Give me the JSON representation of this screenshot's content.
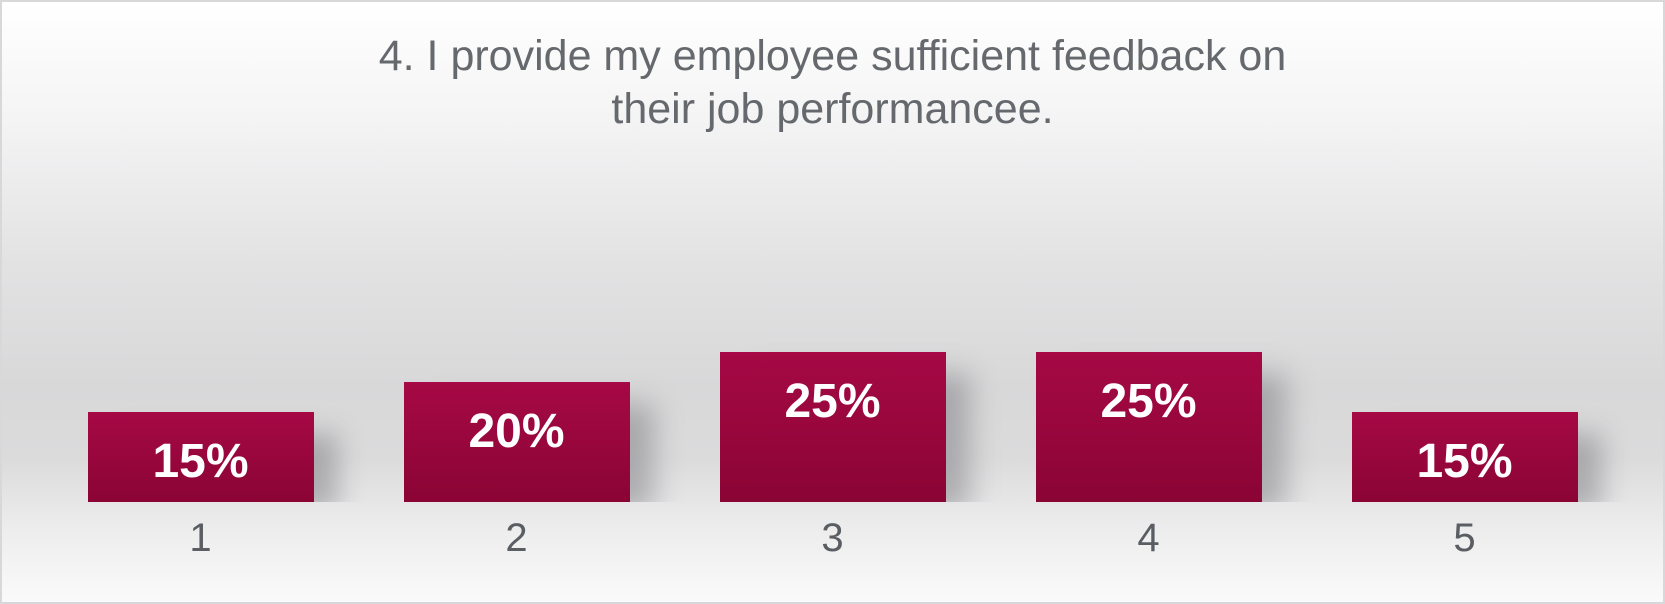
{
  "chart_data": {
    "type": "bar",
    "title": "4. I provide my employee sufficient feedback on their job performancee.",
    "categories": [
      "1",
      "2",
      "3",
      "4",
      "5"
    ],
    "values": [
      15,
      20,
      25,
      25,
      15
    ],
    "value_labels": [
      "15%",
      "20%",
      "25%",
      "25%",
      "15%"
    ],
    "xlabel": "",
    "ylabel": "",
    "ylim": [
      0,
      30
    ],
    "unit": "percent",
    "grid": false,
    "legend": "none",
    "value_label_position": "inside-top",
    "colors": {
      "bar_gradient_top": "#a60945",
      "bar_gradient_bottom": "#8a0434",
      "value_label": "#ffffff",
      "title_text": "#65686c",
      "category_text": "#5a5e63",
      "frame_border": "#d6d8d9"
    }
  }
}
